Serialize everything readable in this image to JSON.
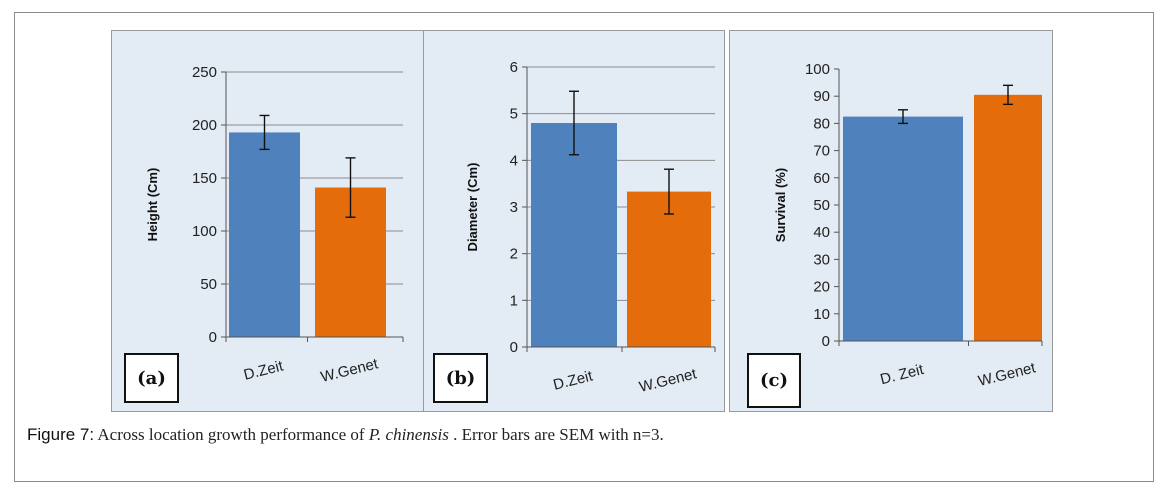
{
  "colors": {
    "dzeit": "#4f81bd",
    "wgenet": "#e46c0a",
    "panel_bg": "#e3ebf4",
    "grid": "#8c8c8c"
  },
  "caption": {
    "figure_label": "Figure 7:",
    "text_before": " Across location growth performance of ",
    "species": "P. chinensis",
    "text_after": " . Error bars are SEM with n=3."
  },
  "chart_data": [
    {
      "id": "a",
      "type": "bar",
      "panel_label": "(a)",
      "ylabel": "Height  (Cm)",
      "ylim": [
        0,
        250
      ],
      "yticks": [
        "0",
        "50",
        "100",
        "150",
        "200",
        "250"
      ],
      "categories": [
        "D.Zeit",
        "W.Genet"
      ],
      "values": [
        193,
        141
      ],
      "errors": [
        16,
        28
      ],
      "grid": true
    },
    {
      "id": "b",
      "type": "bar",
      "panel_label": "(b)",
      "ylabel": "Diameter (Cm)",
      "ylim": [
        0,
        6
      ],
      "yticks": [
        "0",
        "1",
        "2",
        "3",
        "4",
        "5",
        "6"
      ],
      "categories": [
        "D.Zeit",
        "W.Genet"
      ],
      "values": [
        4.8,
        3.33
      ],
      "errors": [
        0.68,
        0.48
      ],
      "grid": true
    },
    {
      "id": "c",
      "type": "bar",
      "panel_label": "(c)",
      "ylabel": "Survival (%)",
      "ylim": [
        0,
        100
      ],
      "yticks": [
        "0",
        "10",
        "20",
        "30",
        "40",
        "50",
        "60",
        "70",
        "80",
        "90",
        "100"
      ],
      "categories": [
        "D. Zeit",
        "W.Genet"
      ],
      "values": [
        82.5,
        90.5
      ],
      "errors": [
        2.5,
        3.5
      ],
      "grid": false
    }
  ]
}
